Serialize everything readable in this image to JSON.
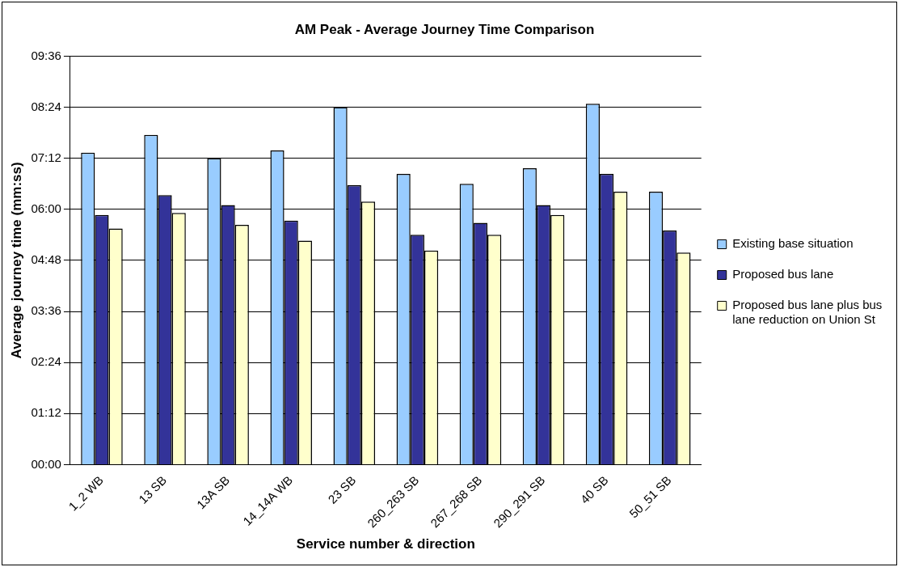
{
  "chart_data": {
    "type": "bar",
    "title": "AM Peak - Average Journey Time Comparison",
    "xlabel": "Service number & direction",
    "ylabel": "Average journey time (mm:ss)",
    "categories": [
      "1_2 WB",
      "13 SB",
      "13A SB",
      "14_14A WB",
      "23 SB",
      "260_263 SB",
      "267_268 SB",
      "290_291 SB",
      "40 SB",
      "50_51 SB"
    ],
    "series": [
      {
        "name": "Existing base situation",
        "color": "#99ccff",
        "values": [
          440,
          465,
          432,
          443,
          504,
          410,
          396,
          418,
          509,
          385
        ]
      },
      {
        "name": "Proposed bus lane",
        "color": "#333399",
        "values": [
          352,
          380,
          366,
          344,
          394,
          324,
          341,
          366,
          410,
          330
        ]
      },
      {
        "name": "Proposed bus lane plus bus lane reduction on Union St",
        "color": "#ffffcc",
        "values": [
          333,
          355,
          338,
          316,
          371,
          302,
          324,
          352,
          385,
          299
        ]
      }
    ],
    "ylim": [
      0,
      576
    ],
    "yticks": [
      {
        "value": 0,
        "label": "00:00"
      },
      {
        "value": 72,
        "label": "01:12"
      },
      {
        "value": 144,
        "label": "02:24"
      },
      {
        "value": 216,
        "label": "03:36"
      },
      {
        "value": 288,
        "label": "04:48"
      },
      {
        "value": 360,
        "label": "06:00"
      },
      {
        "value": 432,
        "label": "07:12"
      },
      {
        "value": 504,
        "label": "08:24"
      },
      {
        "value": 576,
        "label": "09:36"
      }
    ],
    "grid": "y",
    "legend": "right"
  }
}
